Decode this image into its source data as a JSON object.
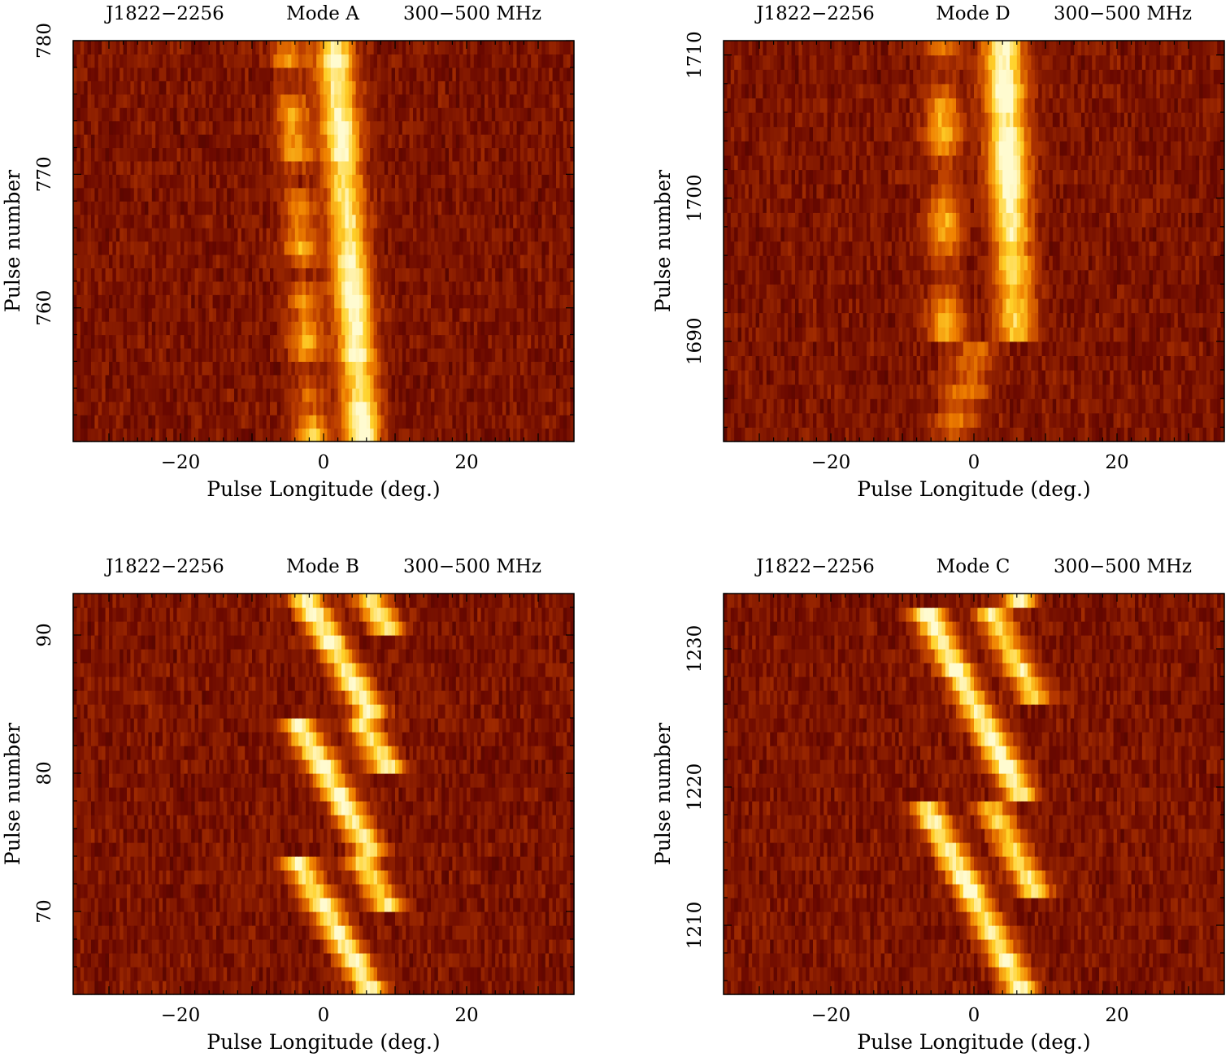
{
  "chart_data": [
    {
      "type": "heatmap",
      "header": {
        "source": "J1822−2256",
        "mode": "Mode A",
        "band": "300−500 MHz"
      },
      "xlabel": "Pulse Longitude (deg.)",
      "ylabel": "Pulse number",
      "xlim": [
        -35,
        35
      ],
      "ylim": [
        750,
        780
      ],
      "x_ticks": [
        -20,
        0,
        20
      ],
      "x_tick_labels": [
        "−20",
        "0",
        "20"
      ],
      "y_ticks": [
        760,
        770,
        780
      ],
      "y_tick_labels": [
        "760",
        "770",
        "780"
      ],
      "colormap": [
        "#200000",
        "#6a0800",
        "#b83a00",
        "#f08000",
        "#ffd22a",
        "#fffbd0"
      ],
      "components": [
        {
          "name": "trailing",
          "from": [
            750,
            5.5
          ],
          "to": [
            780,
            1.5
          ]
        },
        {
          "name": "leading",
          "from": [
            750,
            -1.5
          ],
          "to": [
            780,
            -5.0
          ]
        }
      ]
    },
    {
      "type": "heatmap",
      "header": {
        "source": "J1822−2256",
        "mode": "Mode D",
        "band": "300−500 MHz"
      },
      "xlabel": "Pulse Longitude (deg.)",
      "ylabel": "Pulse number",
      "xlim": [
        -35,
        35
      ],
      "ylim": [
        1683,
        1711
      ],
      "x_ticks": [
        -20,
        0,
        20
      ],
      "x_tick_labels": [
        "−20",
        "0",
        "20"
      ],
      "y_ticks": [
        1690,
        1700,
        1710
      ],
      "y_tick_labels": [
        "1690",
        "1700",
        "1710"
      ],
      "colormap": [
        "#200000",
        "#6a0800",
        "#b83a00",
        "#f08000",
        "#ffd22a",
        "#fffbd0"
      ],
      "components": [
        {
          "name": "trailing",
          "from": [
            1690,
            6.0
          ],
          "to": [
            1711,
            4.0
          ]
        },
        {
          "name": "leading",
          "from": [
            1690,
            -4.0
          ],
          "to": [
            1711,
            -4.5
          ]
        }
      ]
    },
    {
      "type": "heatmap",
      "header": {
        "source": "J1822−2256",
        "mode": "Mode B",
        "band": "300−500 MHz"
      },
      "xlabel": "Pulse Longitude (deg.)",
      "ylabel": "Pulse number",
      "xlim": [
        -35,
        35
      ],
      "ylim": [
        64,
        93
      ],
      "x_ticks": [
        -20,
        0,
        20
      ],
      "x_tick_labels": [
        "−20",
        "0",
        "20"
      ],
      "y_ticks": [
        70,
        80,
        90
      ],
      "y_tick_labels": [
        "70",
        "80",
        "90"
      ],
      "colormap": [
        "#200000",
        "#6a0800",
        "#b83a00",
        "#f08000",
        "#ffd22a",
        "#fffbd0"
      ],
      "components": [
        {
          "name": "drifting-subpulses",
          "drift_deg_per_pulse": 1.1,
          "repeat_pulses": 10
        }
      ]
    },
    {
      "type": "heatmap",
      "header": {
        "source": "J1822−2256",
        "mode": "Mode C",
        "band": "300−500 MHz"
      },
      "xlabel": "Pulse Longitude (deg.)",
      "ylabel": "Pulse number",
      "xlim": [
        -35,
        35
      ],
      "ylim": [
        1205,
        1234
      ],
      "x_ticks": [
        -20,
        0,
        20
      ],
      "x_tick_labels": [
        "−20",
        "0",
        "20"
      ],
      "y_ticks": [
        1210,
        1220,
        1230
      ],
      "y_tick_labels": [
        "1210",
        "1220",
        "1230"
      ],
      "colormap": [
        "#200000",
        "#6a0800",
        "#b83a00",
        "#f08000",
        "#ffd22a",
        "#fffbd0"
      ],
      "components": [
        {
          "name": "drifting-subpulses",
          "drift_deg_per_pulse": 1.0,
          "repeat_pulses": 14
        }
      ]
    }
  ]
}
